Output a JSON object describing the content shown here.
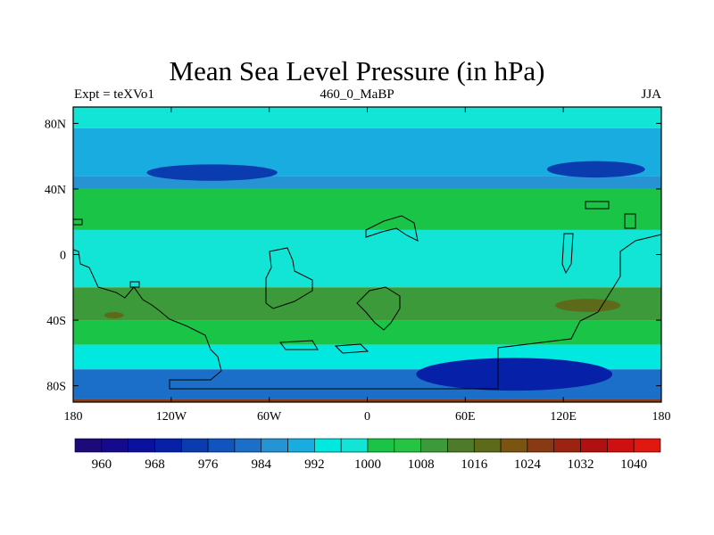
{
  "chart_data": {
    "type": "contour-map",
    "title": "Mean Sea Level Pressure (in hPa)",
    "left_label": "Expt = teXVo1",
    "center_label": "460_0_MaBP",
    "right_label": "JJA",
    "x_ticks": [
      {
        "value": -180,
        "label": "180"
      },
      {
        "value": -120,
        "label": "120W"
      },
      {
        "value": -60,
        "label": "60W"
      },
      {
        "value": 0,
        "label": "0"
      },
      {
        "value": 60,
        "label": "60E"
      },
      {
        "value": 120,
        "label": "120E"
      },
      {
        "value": 180,
        "label": "180"
      }
    ],
    "y_ticks": [
      {
        "value": 80,
        "label": "80N"
      },
      {
        "value": 40,
        "label": "40N"
      },
      {
        "value": 0,
        "label": "0"
      },
      {
        "value": -40,
        "label": "40S"
      },
      {
        "value": -80,
        "label": "80S"
      }
    ],
    "xlim": [
      -180,
      180
    ],
    "ylim": [
      -90,
      90
    ],
    "levels": [
      960,
      964,
      968,
      972,
      976,
      980,
      984,
      988,
      992,
      996,
      1000,
      1004,
      1008,
      1012,
      1016,
      1020,
      1024,
      1028,
      1032,
      1036,
      1040
    ],
    "colorbar_labels": [
      "960",
      "968",
      "976",
      "984",
      "992",
      "1000",
      "1008",
      "1016",
      "1024",
      "1032",
      "1040"
    ],
    "colors": [
      "#1c0a7a",
      "#150a8c",
      "#0b119f",
      "#0621a8",
      "#0a3cb0",
      "#1154bd",
      "#1c6fc8",
      "#2593d4",
      "#19ace0",
      "#00e8e0",
      "#12e4d6",
      "#19c446",
      "#26c442",
      "#3d9a3a",
      "#4e7a2a",
      "#5c6a1a",
      "#7a5410",
      "#8a3a12",
      "#9a2410",
      "#b01010",
      "#d01010",
      "#e01810"
    ],
    "field_bands": [
      {
        "lat_range": [
          90,
          77
        ],
        "level": 996
      },
      {
        "lat_range": [
          77,
          48
        ],
        "level": 988
      },
      {
        "lat_range": [
          48,
          40
        ],
        "level": 984
      },
      {
        "lat_range": [
          40,
          15
        ],
        "level": 1000
      },
      {
        "lat_range": [
          15,
          -20
        ],
        "level": 996
      },
      {
        "lat_range": [
          -20,
          -40
        ],
        "level": 1008
      },
      {
        "lat_range": [
          -40,
          -55
        ],
        "level": 1000
      },
      {
        "lat_range": [
          -55,
          -70
        ],
        "level": 992
      },
      {
        "lat_range": [
          -70,
          -88
        ],
        "level": 980
      },
      {
        "lat_range": [
          -88,
          -90
        ],
        "level": 1024
      }
    ],
    "field_features": [
      {
        "name": "north-pacific-low",
        "center": [
          -95,
          50
        ],
        "radius": [
          40,
          5
        ],
        "level": 972
      },
      {
        "name": "siberian-low",
        "center": [
          140,
          52
        ],
        "radius": [
          30,
          5
        ],
        "level": 972
      },
      {
        "name": "southern-low",
        "center": [
          90,
          -73
        ],
        "radius": [
          60,
          10
        ],
        "level": 968
      },
      {
        "name": "south-indian-high",
        "center": [
          135,
          -31
        ],
        "radius": [
          20,
          4
        ],
        "level": 1016
      },
      {
        "name": "south-pacific-high",
        "center": [
          -155,
          -37
        ],
        "radius": [
          6,
          2
        ],
        "level": 1016
      }
    ]
  }
}
